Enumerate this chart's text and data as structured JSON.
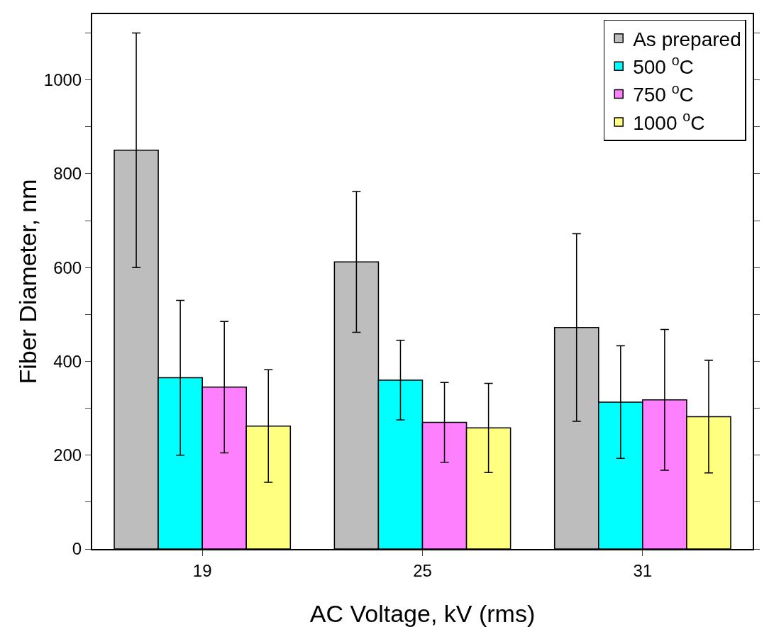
{
  "chart_data": {
    "type": "bar",
    "xlabel": "AC Voltage, kV (rms)",
    "ylabel": "Fiber Diameter, nm",
    "categories": [
      "19",
      "25",
      "31"
    ],
    "series": [
      {
        "name": "As prepared",
        "color": "#bdbdbd",
        "values": [
          850,
          612,
          472
        ],
        "errors": [
          250,
          150,
          200
        ]
      },
      {
        "name": "500 $^{o}$C",
        "color": "#00ffff",
        "values": [
          365,
          360,
          313
        ],
        "errors": [
          165,
          85,
          120
        ]
      },
      {
        "name": "750 $^{o}$C",
        "color": "#ff80ff",
        "values": [
          345,
          270,
          318
        ],
        "errors": [
          140,
          85,
          150
        ]
      },
      {
        "name": "1000 $^{o}$C",
        "color": "#ffff80",
        "values": [
          262,
          258,
          282
        ],
        "errors": [
          120,
          95,
          120
        ]
      }
    ],
    "ylim": [
      0,
      1140
    ],
    "yticks": [
      0,
      {
        "value": 100,
        "label": null
      },
      200,
      {
        "value": 300,
        "label": null
      },
      400,
      {
        "value": 500,
        "label": null
      },
      600,
      {
        "value": 700,
        "label": null
      },
      800,
      {
        "value": 900,
        "label": null
      },
      1000,
      {
        "value": 1100,
        "label": null
      }
    ],
    "grid": false,
    "legend": "top right"
  }
}
